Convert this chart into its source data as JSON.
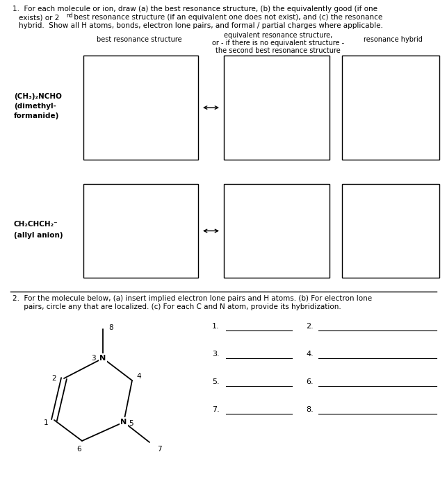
{
  "bg_color": "#ffffff",
  "border_color": "#000000",
  "text_color": "#000000",
  "col1_header": "best resonance structure",
  "col2_header_line1": "equivalent resonance structure,",
  "col2_header_line2": "or - if there is no equivalent structure -",
  "col2_header_line3": "the second best resonance structure",
  "col3_header": "resonance hybrid",
  "row1_label": [
    "(CH₃)₂NCHO",
    "(dimethyl-",
    "formanide)"
  ],
  "row2_label": [
    "CH₂CHCH₂⁻",
    "(allyl anion)"
  ],
  "title2_line1": "2.  For the molecule below, (a) insert implied electron lone pairs and H atoms. (b) For electron lone",
  "title2_line2": "     pairs, circle any that are localized. (c) For each C and N atom, provide its hybridization."
}
